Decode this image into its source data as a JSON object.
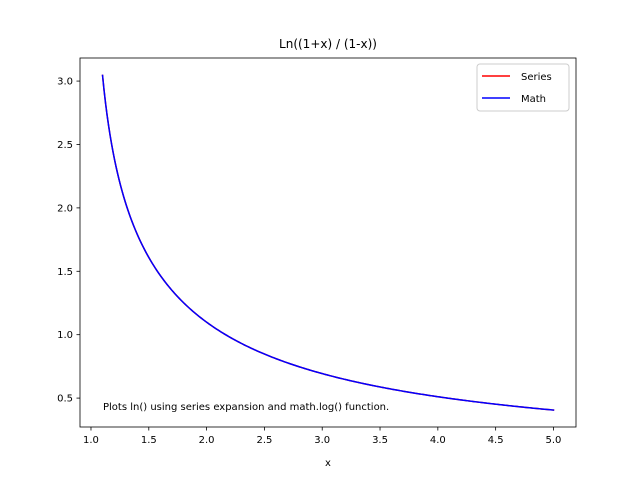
{
  "chart_data": {
    "type": "line",
    "title": "Ln((1+x) / (1-x))",
    "xlabel": "x",
    "ylabel": "",
    "xlim": [
      0.905,
      5.195
    ],
    "ylim": [
      0.272,
      3.182
    ],
    "xticks": [
      1.0,
      1.5,
      2.0,
      2.5,
      3.0,
      3.5,
      4.0,
      4.5,
      5.0
    ],
    "xtick_labels": [
      "1.0",
      "1.5",
      "2.0",
      "2.5",
      "3.0",
      "3.5",
      "4.0",
      "4.5",
      "5.0"
    ],
    "yticks": [
      0.5,
      1.0,
      1.5,
      2.0,
      2.5,
      3.0
    ],
    "ytick_labels": [
      "0.5",
      "1.0",
      "1.5",
      "2.0",
      "2.5",
      "3.0"
    ],
    "grid": false,
    "legend_position": "top-right",
    "annotation": "Plots ln() using series expansion and math.log() function.",
    "series": [
      {
        "name": "Series",
        "color": "#ff0000",
        "function": "ln((x+1)/(x-1))",
        "x_range": [
          1.1,
          5.0
        ]
      },
      {
        "name": "Math",
        "color": "#0000ff",
        "function": "ln((x+1)/(x-1))",
        "x_range": [
          1.1,
          5.0
        ]
      }
    ]
  }
}
